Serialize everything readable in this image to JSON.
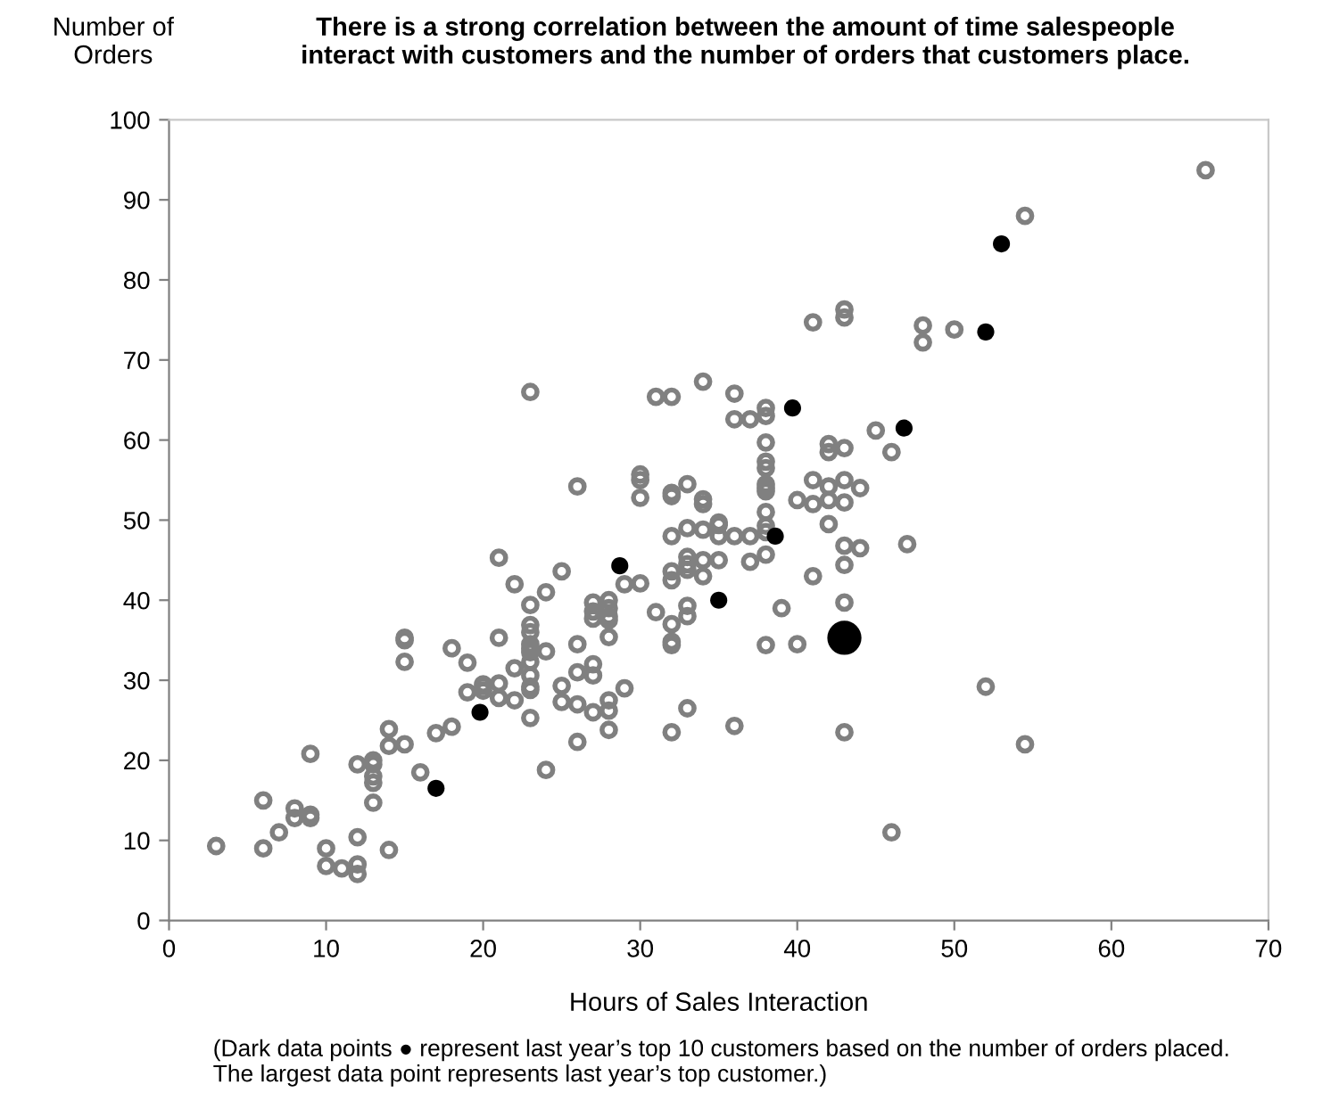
{
  "chart_data": {
    "type": "scatter",
    "title": "There is a strong correlation between the amount of time salespeople\ninteract with customers and the number of orders that customers place.",
    "xlabel": "Hours of Sales Interaction",
    "ylabel": "Number of\nOrders",
    "annotations": [
      "(Dark data points ● represent last year’s top 10 customers based on the number of orders placed.\nThe largest data point represents last year’s top customer.)"
    ],
    "xlim": [
      0,
      70
    ],
    "ylim": [
      0,
      100
    ],
    "xticks": [
      0,
      10,
      20,
      30,
      40,
      50,
      60,
      70
    ],
    "yticks": [
      0,
      10,
      20,
      30,
      40,
      50,
      60,
      70,
      80,
      90,
      100
    ],
    "grid": false,
    "legend": false,
    "marker": "circle",
    "series": [
      {
        "color": "#808080",
        "x": [
          3,
          6,
          6,
          7,
          8,
          8,
          9,
          9,
          9,
          10,
          10,
          11,
          12,
          12,
          12,
          12,
          13,
          13,
          13,
          13,
          13,
          14,
          14,
          14,
          15,
          15,
          15,
          15,
          16,
          17,
          18,
          18,
          19,
          19,
          20,
          20,
          20,
          21,
          21,
          21,
          21,
          22,
          22,
          22,
          23,
          23,
          23,
          23,
          23,
          23,
          23,
          23,
          23,
          23,
          23,
          23,
          24,
          24,
          24,
          25,
          25,
          25,
          26,
          26,
          26,
          26,
          26,
          27,
          27,
          27,
          27,
          27,
          27,
          28,
          28,
          28,
          28,
          28,
          28,
          28,
          28,
          29,
          29,
          30,
          30,
          30,
          30,
          31,
          31,
          32,
          32,
          32,
          32,
          32,
          32,
          32,
          32,
          32,
          32,
          33,
          33,
          33,
          33,
          33,
          33,
          33,
          33,
          34,
          34,
          34,
          34,
          34,
          34,
          35,
          35,
          35,
          35,
          36,
          36,
          36,
          36,
          37,
          37,
          37,
          38,
          38,
          38,
          38,
          38,
          38,
          38,
          38,
          38,
          38,
          38,
          38,
          38,
          39,
          40,
          40,
          41,
          41,
          41,
          41,
          42,
          42,
          42,
          42,
          42,
          43,
          43,
          43,
          43,
          43,
          43,
          43,
          43,
          43,
          44,
          44,
          45,
          46,
          46,
          47,
          48,
          48,
          50,
          52,
          54.5,
          54.5,
          66
        ],
        "values": [
          9.3,
          15,
          9,
          11,
          14,
          12.8,
          13.2,
          12.8,
          20.8,
          9,
          6.8,
          6.5,
          7,
          5.8,
          10.4,
          19.5,
          19.5,
          20,
          18,
          17.2,
          14.7,
          23.9,
          21.8,
          8.8,
          35.3,
          35,
          32.3,
          22,
          18.5,
          23.4,
          24.2,
          34,
          32.2,
          28.5,
          29.3,
          28.7,
          29.5,
          29.6,
          35.3,
          27.8,
          45.3,
          42,
          31.5,
          27.5,
          66,
          39.4,
          36.9,
          36,
          34.5,
          34,
          33.5,
          32.3,
          30.6,
          29.2,
          28.8,
          25.3,
          41,
          33.6,
          18.8,
          43.6,
          29.3,
          27.3,
          54.2,
          34.5,
          31,
          27,
          22.3,
          39.7,
          38.6,
          37.7,
          32,
          30.6,
          26,
          40,
          39,
          38,
          37.5,
          35.4,
          27.5,
          23.8,
          26.2,
          42,
          29,
          55.7,
          55,
          52.8,
          42.1,
          65.4,
          38.5,
          65.4,
          53.4,
          53,
          48,
          43.6,
          42.5,
          37,
          34.8,
          34.4,
          23.5,
          54.5,
          49,
          45.4,
          44.5,
          43.8,
          39.3,
          38,
          26.5,
          67.3,
          52.6,
          52,
          48.8,
          43,
          45,
          49.7,
          49.4,
          48,
          45,
          65.8,
          62.6,
          48,
          24.3,
          62.6,
          48,
          44.8,
          64,
          63,
          59.7,
          57.3,
          56.5,
          54.5,
          54,
          53.6,
          51,
          49.3,
          48.5,
          45.7,
          34.4,
          39,
          52.5,
          34.5,
          74.7,
          55,
          52,
          43,
          59.5,
          58.5,
          54.2,
          52.5,
          49.5,
          76.3,
          75.3,
          59,
          55,
          52.2,
          46.8,
          44.4,
          39.7,
          23.5,
          54,
          46.5,
          61.2,
          58.5,
          11,
          47,
          74.3,
          72.2,
          73.8,
          29.2,
          88,
          22,
          93.7
        ]
      },
      {
        "type": "bubble",
        "color": "#000000",
        "x": [
          17,
          19.8,
          28.7,
          35,
          38.6,
          39.7,
          46.8,
          52,
          53,
          43
        ],
        "values": [
          16.5,
          26,
          44.3,
          40,
          48,
          64,
          61.5,
          73.5,
          84.5,
          35.3
        ],
        "sizes": [
          0.25,
          0.25,
          0.25,
          0.25,
          0.25,
          0.25,
          0.25,
          0.25,
          0.25,
          1
        ]
      }
    ]
  }
}
